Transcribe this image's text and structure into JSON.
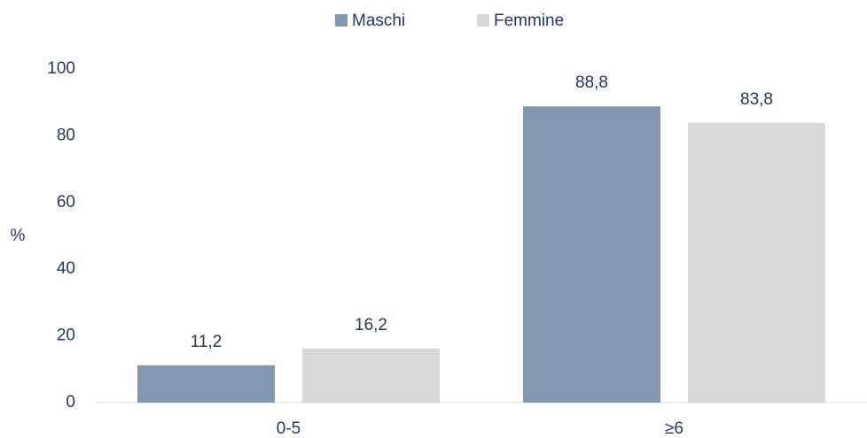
{
  "chart_data": {
    "type": "bar",
    "y_label": "%",
    "categories": [
      "0-5",
      "≥6"
    ],
    "series": [
      {
        "name": "Maschi",
        "color": "#8497b0",
        "values": [
          11.2,
          88.8
        ],
        "value_labels": [
          "11,2",
          "88,8"
        ]
      },
      {
        "name": "Femmine",
        "color": "#d9d9d9",
        "values": [
          16.2,
          83.8
        ],
        "value_labels": [
          "16,2",
          "83,8"
        ]
      }
    ],
    "ylim": [
      0,
      100
    ],
    "yticks": [
      0,
      20,
      40,
      60,
      80,
      100
    ],
    "grid": false,
    "legend": "top"
  }
}
